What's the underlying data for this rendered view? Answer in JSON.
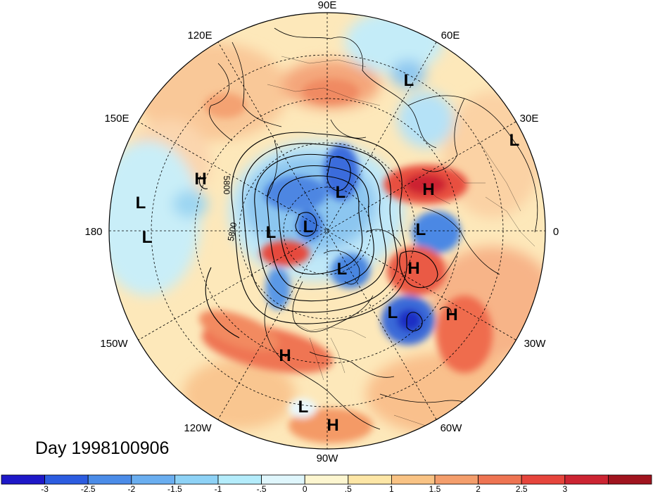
{
  "title_text": "Day 1998100906",
  "map": {
    "projection": "north polar stereographic",
    "longitude_labels": [
      "90E",
      "60E",
      "30E",
      "0",
      "30W",
      "60W",
      "90W",
      "120W",
      "150W",
      "180",
      "150E",
      "120E"
    ]
  },
  "pressure_centers": [
    {
      "type": "L",
      "name": "siberia-low"
    },
    {
      "type": "L",
      "name": "scandinavia-low"
    },
    {
      "type": "L",
      "name": "pacific-low-1"
    },
    {
      "type": "L",
      "name": "pacific-low-2"
    },
    {
      "type": "L",
      "name": "arctic-low-1"
    },
    {
      "type": "L",
      "name": "arctic-low-2"
    },
    {
      "type": "L",
      "name": "arctic-low-3"
    },
    {
      "type": "L",
      "name": "europe-low"
    },
    {
      "type": "L",
      "name": "canada-low"
    },
    {
      "type": "L",
      "name": "atlantic-low"
    },
    {
      "type": "L",
      "name": "mexico-low"
    },
    {
      "type": "H",
      "name": "east-asia-high"
    },
    {
      "type": "H",
      "name": "russia-high"
    },
    {
      "type": "H",
      "name": "north-atlantic-high"
    },
    {
      "type": "H",
      "name": "central-atlantic-high"
    },
    {
      "type": "H",
      "name": "us-high"
    },
    {
      "type": "H",
      "name": "caribbean-high"
    }
  ],
  "contour_labels": [
    "5800",
    "5800"
  ],
  "colorbar": {
    "colors": [
      "#1e18c8",
      "#2c5ce0",
      "#4b8ce8",
      "#6aaef0",
      "#8ed2f6",
      "#b4ecfb",
      "#dff6fc",
      "#fdf6d0",
      "#fde6a6",
      "#f9c384",
      "#f49e6c",
      "#ee7452",
      "#e6453c",
      "#cc2432",
      "#a0141e"
    ],
    "tick_labels": [
      "-3",
      "-2.5",
      "-2",
      "-1.5",
      "-1",
      "-.5",
      "0",
      ".5",
      "1",
      "1.5",
      "2",
      "2.5",
      "3"
    ]
  }
}
